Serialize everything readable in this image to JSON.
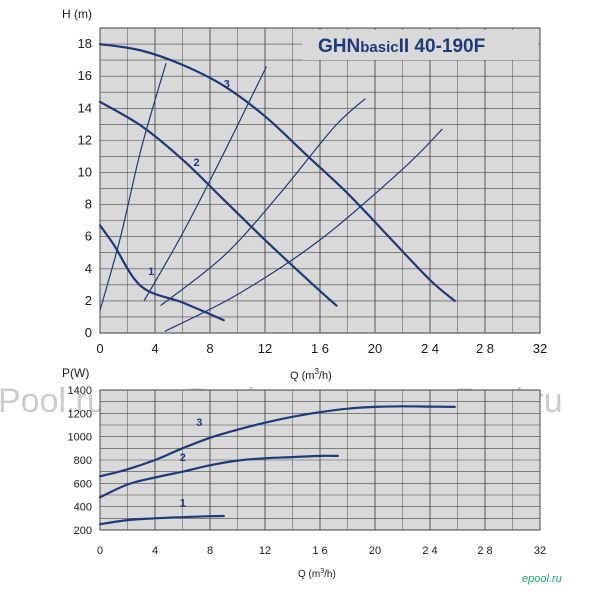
{
  "watermark": {
    "left": "Pool.ru",
    "center": "ePool.ru",
    "right": "ePool.ru",
    "far_right": "ePool.ru",
    "corner": "epool.ru"
  },
  "colors": {
    "plot_bg": "#d9d9d9",
    "grid": "#4a4a4a",
    "curve": "#1f3a7a",
    "title": "#1f3a7a",
    "watermark": "#c9c9c9",
    "corner": "#1aa37a"
  },
  "chart_data": [
    {
      "id": "head",
      "type": "line",
      "title": "GHNbasicII  40-190F",
      "title_parts": {
        "brand": "GHN",
        "sub": "basic",
        "model": "II  40-190F"
      },
      "ylabel": "H (m)",
      "xlabel": "Q (m³/h)",
      "xlim": [
        0,
        32
      ],
      "ylim": [
        0,
        19
      ],
      "x_ticks": [
        0,
        4,
        8,
        12,
        16,
        20,
        24,
        28,
        32
      ],
      "x_tick_labels": [
        "0",
        "4",
        "8",
        "12",
        "1 6",
        "20",
        "2 4",
        "2 8",
        "32"
      ],
      "y_ticks": [
        0,
        2,
        4,
        6,
        8,
        10,
        12,
        14,
        16,
        18
      ],
      "y_tick_labels": [
        "0",
        "2",
        "4",
        "6",
        "8",
        "10",
        "12",
        "14",
        "16",
        "18"
      ],
      "grid": true,
      "series": [
        {
          "label": "1",
          "x": [
            0,
            1,
            3,
            6,
            9
          ],
          "y": [
            6.7,
            5.5,
            2.9,
            1.9,
            0.8
          ],
          "label_at": [
            3.5,
            3.6
          ]
        },
        {
          "label": "2",
          "x": [
            0,
            3,
            6,
            9,
            12,
            15,
            17.2
          ],
          "y": [
            14.4,
            12.9,
            10.8,
            8.3,
            5.8,
            3.4,
            1.7
          ],
          "label_at": [
            6.8,
            10.4
          ]
        },
        {
          "label": "3",
          "x": [
            0,
            3,
            6,
            9,
            12,
            15,
            18,
            21,
            24,
            25.8
          ],
          "y": [
            18,
            17.6,
            16.7,
            15.4,
            13.5,
            11.1,
            8.7,
            6.0,
            3.3,
            2.0
          ],
          "label_at": [
            9.0,
            15.3
          ]
        }
      ],
      "system_curves": [
        {
          "x": [
            0,
            1.5,
            3,
            4.8
          ],
          "y": [
            1.4,
            6,
            11.5,
            16.8
          ]
        },
        {
          "x": [
            3.2,
            6,
            9,
            12.1
          ],
          "y": [
            2.0,
            6.2,
            11.2,
            16.6
          ]
        },
        {
          "x": [
            4.4,
            9,
            13,
            17,
            19.3
          ],
          "y": [
            1.7,
            4.8,
            8.6,
            12.8,
            14.6
          ]
        },
        {
          "x": [
            4.7,
            10,
            16,
            22,
            24.9
          ],
          "y": [
            0.1,
            2.4,
            5.8,
            10.2,
            12.7
          ]
        }
      ]
    },
    {
      "id": "power",
      "type": "line",
      "ylabel": "P(W)",
      "xlabel": "Q (m³/h)",
      "xlim": [
        0,
        32
      ],
      "ylim": [
        200,
        1400
      ],
      "x_ticks": [
        0,
        4,
        8,
        12,
        16,
        20,
        24,
        28,
        32
      ],
      "x_tick_labels": [
        "0",
        "4",
        "8",
        "12",
        "1 6",
        "20",
        "2 4",
        "2 8",
        "32"
      ],
      "y_ticks": [
        200,
        400,
        600,
        800,
        1000,
        1200,
        1400
      ],
      "y_tick_labels": [
        "200",
        "400",
        "600",
        "800",
        "1000",
        "1200",
        "1400"
      ],
      "grid": true,
      "series": [
        {
          "label": "1",
          "x": [
            0,
            2,
            4,
            6,
            8,
            9
          ],
          "y": [
            250,
            285,
            300,
            310,
            318,
            320
          ],
          "label_at": [
            5.8,
            400
          ]
        },
        {
          "label": "2",
          "x": [
            0,
            2,
            4,
            6,
            8,
            10,
            12,
            14,
            16,
            17.3
          ],
          "y": [
            480,
            590,
            650,
            700,
            755,
            795,
            815,
            825,
            835,
            835
          ],
          "label_at": [
            5.8,
            790
          ]
        },
        {
          "label": "3",
          "x": [
            0,
            2,
            4,
            6,
            8,
            10,
            12,
            14,
            16,
            18,
            20,
            22,
            24,
            25.8
          ],
          "y": [
            660,
            720,
            800,
            900,
            990,
            1060,
            1120,
            1170,
            1210,
            1240,
            1255,
            1260,
            1258,
            1255
          ],
          "label_at": [
            7.0,
            1090
          ]
        }
      ]
    }
  ]
}
